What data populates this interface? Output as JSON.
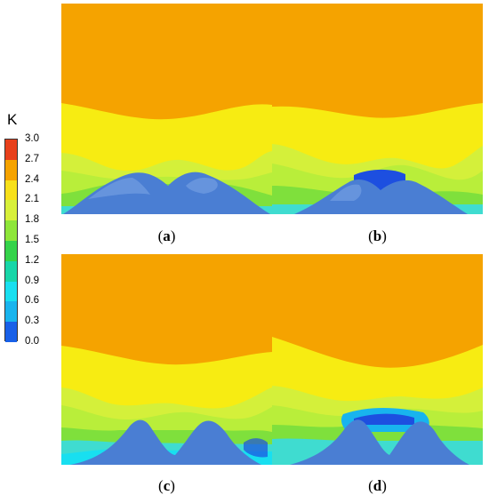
{
  "legend": {
    "title": "K",
    "ticks": [
      "3.0",
      "2.7",
      "2.4",
      "2.1",
      "1.8",
      "1.5",
      "1.2",
      "0.9",
      "0.6",
      "0.3",
      "0.0"
    ],
    "band_colors": [
      "#e8401c",
      "#f5a300",
      "#f7e01a",
      "#d8f03a",
      "#8ee63a",
      "#34d34a",
      "#17d6a8",
      "#18dff0",
      "#18b4ee",
      "#1860e8"
    ]
  },
  "panels": [
    {
      "letter": "a"
    },
    {
      "letter": "b"
    },
    {
      "letter": "c"
    },
    {
      "letter": "d"
    }
  ],
  "colors": {
    "orange": "#f5a300",
    "yellow": "#f7ec12",
    "yellow_green": "#d4f03a",
    "green": "#7fe03c",
    "cyan": "#3fdcd0",
    "blue": "#1d4fe0",
    "hill": "#5c8dd6"
  }
}
